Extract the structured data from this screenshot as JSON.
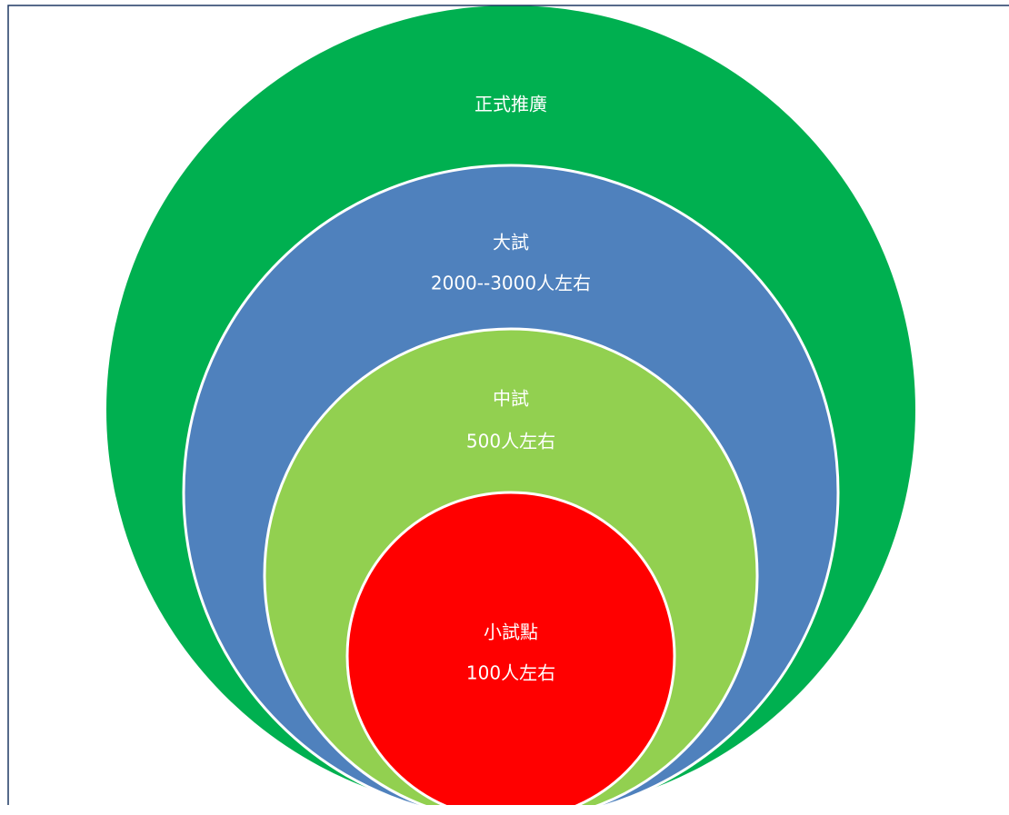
{
  "circles": [
    {
      "lines": [
        "正式推廣"
      ]
    },
    {
      "lines": [
        "大試",
        "2000--3000人左右"
      ]
    },
    {
      "lines": [
        "中試",
        "500人左右"
      ]
    },
    {
      "lines": [
        "小試點",
        "100人左右"
      ]
    }
  ]
}
